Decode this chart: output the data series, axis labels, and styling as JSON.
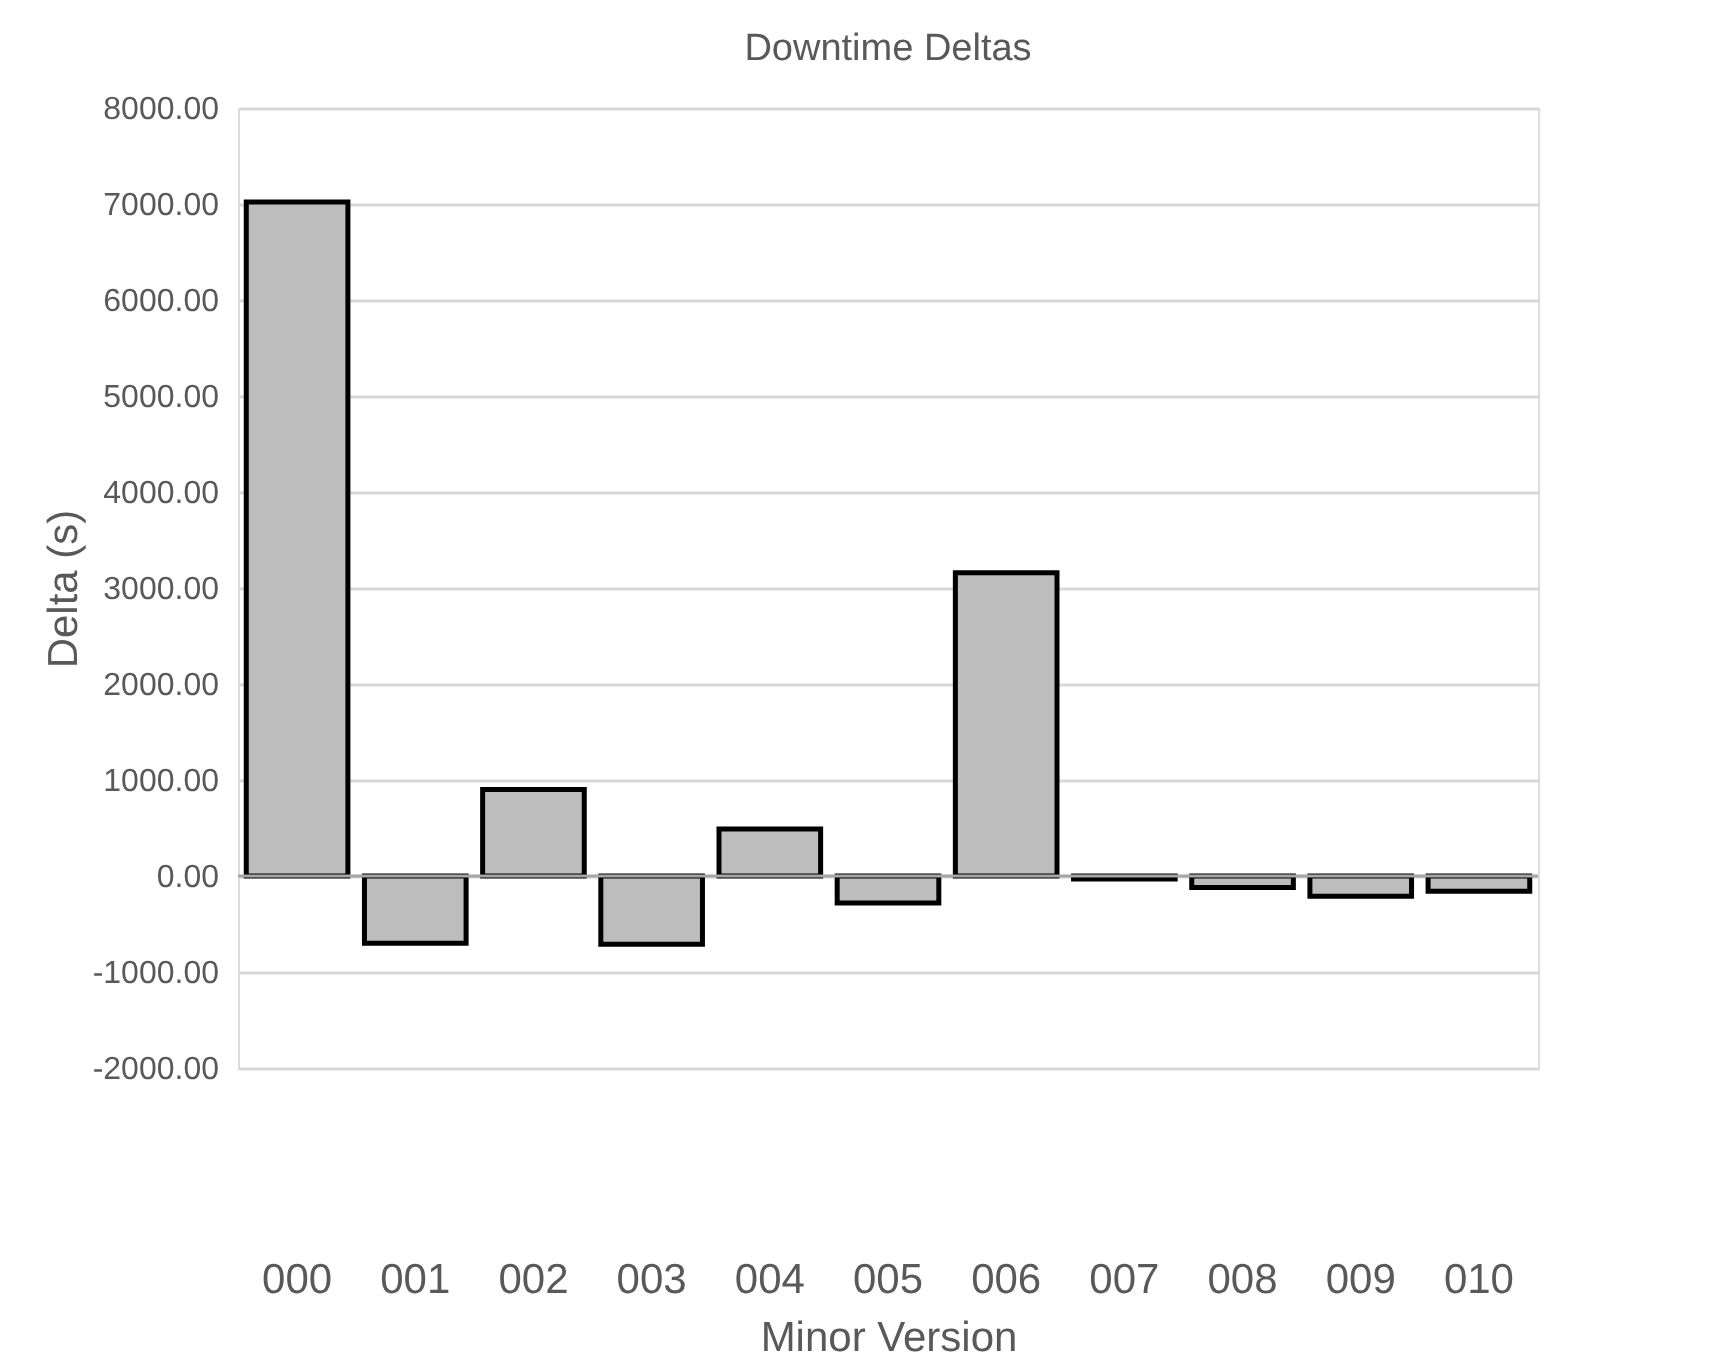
{
  "chart_data": {
    "type": "bar",
    "title": "Downtime Deltas",
    "xlabel": "Minor Version",
    "ylabel": "Delta (s)",
    "categories": [
      "000",
      "001",
      "002",
      "003",
      "004",
      "005",
      "006",
      "007",
      "008",
      "009",
      "010"
    ],
    "series": [
      {
        "color": "#bdbdbd",
        "values": [
          7020,
          -700,
          900,
          -710,
          490,
          -280,
          3160,
          -30,
          -120,
          -210,
          -160
        ]
      }
    ],
    "ylim": [
      -2000,
      8000
    ],
    "yticks": [
      {
        "value": -2000,
        "label": "-2000.00"
      },
      {
        "value": -1000,
        "label": "-1000.00"
      },
      {
        "value": 0,
        "label": "0.00"
      },
      {
        "value": 1000,
        "label": "1000.00"
      },
      {
        "value": 2000,
        "label": "2000.00"
      },
      {
        "value": 3000,
        "label": "3000.00"
      },
      {
        "value": 4000,
        "label": "4000.00"
      },
      {
        "value": 5000,
        "label": "5000.00"
      },
      {
        "value": 6000,
        "label": "6000.00"
      },
      {
        "value": 7000,
        "label": "7000.00"
      },
      {
        "value": 8000,
        "label": "8000.00"
      }
    ],
    "grid": "y",
    "legend": false
  }
}
